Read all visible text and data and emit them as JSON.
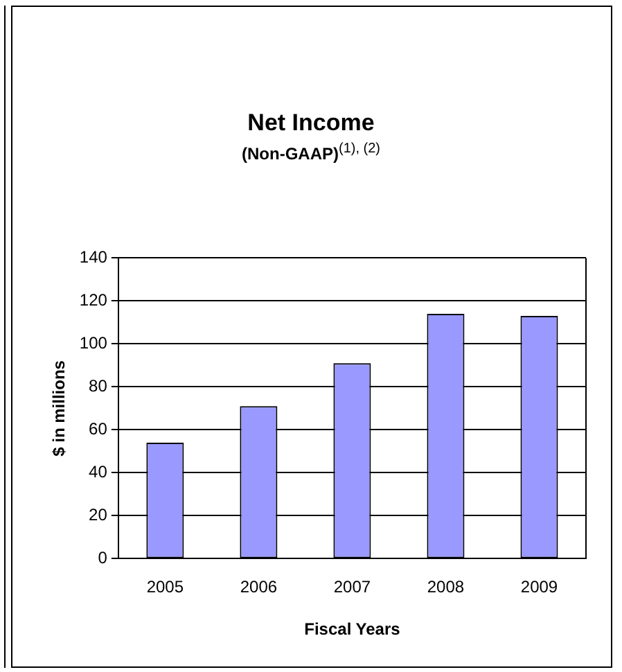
{
  "chart_data": {
    "type": "bar",
    "title": "Net Income",
    "subtitle": "(Non-GAAP)$^{(1), (2)}$",
    "xlabel": "Fiscal Years",
    "ylabel": "$ in millions",
    "categories": [
      "2005",
      "2006",
      "2007",
      "2008",
      "2009"
    ],
    "values": [
      54,
      71,
      91,
      114,
      113
    ],
    "color": "#9999ff",
    "ylim": [
      0,
      140
    ],
    "yticks": [
      0,
      20,
      40,
      60,
      80,
      100,
      120,
      140
    ],
    "grid": "y",
    "legend": false
  }
}
